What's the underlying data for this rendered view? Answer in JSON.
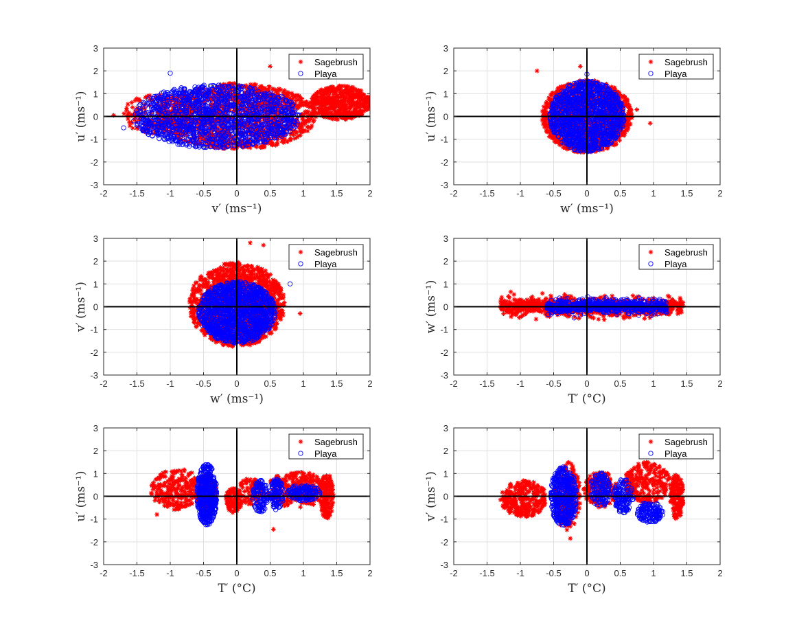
{
  "figure": {
    "background": "#ffffff",
    "sagebrush_color": "#ff0000",
    "playa_color": "#0000ff"
  },
  "chart_data": [
    {
      "type": "scatter",
      "panel": "top-left",
      "xlabel": "v′ (ms⁻¹)",
      "ylabel": "u′ (ms⁻¹)",
      "xlim": [
        -2,
        2
      ],
      "ylim": [
        -3,
        3
      ],
      "xticks": [
        "-2",
        "-1.5",
        "-1",
        "-0.5",
        "0",
        "0.5",
        "1",
        "1.5",
        "2"
      ],
      "yticks": [
        "-3",
        "-2",
        "-1",
        "0",
        "1",
        "2",
        "3"
      ],
      "grid": true,
      "legend": "top-right",
      "series": [
        {
          "name": "Sagebrush",
          "marker": "asterisk",
          "color": "#ff0000",
          "clusters": [
            {
              "cx": 0.0,
              "cy": 0.0,
              "rx": 1.2,
              "ry": 1.45,
              "n": 1300
            },
            {
              "cx": 1.55,
              "cy": 0.6,
              "rx": 0.45,
              "ry": 0.75,
              "n": 500
            },
            {
              "cx": -1.2,
              "cy": 0.1,
              "rx": 0.5,
              "ry": 0.9,
              "n": 150
            }
          ],
          "points": [
            {
              "x": -1.85,
              "y": 0.05
            },
            {
              "x": 0.5,
              "y": 2.2
            },
            {
              "x": 1.95,
              "y": 0.75
            }
          ]
        },
        {
          "name": "Playa",
          "marker": "circle",
          "color": "#0000ff",
          "clusters": [
            {
              "cx": -0.3,
              "cy": 0.0,
              "rx": 1.25,
              "ry": 1.4,
              "n": 1500
            }
          ],
          "points": [
            {
              "x": -1.7,
              "y": -0.5
            },
            {
              "x": -1.0,
              "y": 1.9
            },
            {
              "x": -1.55,
              "y": -0.2
            }
          ]
        }
      ]
    },
    {
      "type": "scatter",
      "panel": "top-right",
      "xlabel": "w′ (ms⁻¹)",
      "ylabel": "u′ (ms⁻¹)",
      "xlim": [
        -2,
        2
      ],
      "ylim": [
        -3,
        3
      ],
      "xticks": [
        "-2",
        "-1.5",
        "-1",
        "-0.5",
        "0",
        "0.5",
        "1",
        "1.5",
        "2"
      ],
      "yticks": [
        "-3",
        "-2",
        "-1",
        "0",
        "1",
        "2",
        "3"
      ],
      "grid": true,
      "legend": "top-right",
      "series": [
        {
          "name": "Sagebrush",
          "marker": "asterisk",
          "color": "#ff0000",
          "clusters": [
            {
              "cx": 0.0,
              "cy": 0.0,
              "rx": 0.68,
              "ry": 1.6,
              "n": 1200
            }
          ],
          "points": [
            {
              "x": -0.75,
              "y": 2.0
            },
            {
              "x": -0.1,
              "y": 2.2
            },
            {
              "x": 0.95,
              "y": -0.3
            },
            {
              "x": 0.75,
              "y": 0.3
            }
          ]
        },
        {
          "name": "Playa",
          "marker": "circle",
          "color": "#0000ff",
          "clusters": [
            {
              "cx": 0.0,
              "cy": 0.0,
              "rx": 0.56,
              "ry": 1.55,
              "n": 1400
            }
          ],
          "points": [
            {
              "x": 0.0,
              "y": 1.85
            }
          ]
        }
      ]
    },
    {
      "type": "scatter",
      "panel": "middle-left",
      "xlabel": "w′ (ms⁻¹)",
      "ylabel": "v′ (ms⁻¹)",
      "xlim": [
        -2,
        2
      ],
      "ylim": [
        -3,
        3
      ],
      "xticks": [
        "-2",
        "-1.5",
        "-1",
        "-0.5",
        "0",
        "0.5",
        "1",
        "1.5",
        "2"
      ],
      "yticks": [
        "-3",
        "-2",
        "-1",
        "0",
        "1",
        "2",
        "3"
      ],
      "grid": true,
      "legend": "top-right",
      "series": [
        {
          "name": "Sagebrush",
          "marker": "asterisk",
          "color": "#ff0000",
          "clusters": [
            {
              "cx": 0.0,
              "cy": 0.1,
              "rx": 0.72,
              "ry": 1.85,
              "n": 1300
            }
          ],
          "points": [
            {
              "x": 0.2,
              "y": 2.8
            },
            {
              "x": 0.4,
              "y": 2.7
            },
            {
              "x": 0.95,
              "y": -0.3
            },
            {
              "x": -0.7,
              "y": 0.3
            }
          ]
        },
        {
          "name": "Playa",
          "marker": "circle",
          "color": "#0000ff",
          "clusters": [
            {
              "cx": 0.0,
              "cy": -0.25,
              "rx": 0.58,
              "ry": 1.35,
              "n": 1400
            }
          ],
          "points": [
            {
              "x": 0.8,
              "y": 1.0
            }
          ]
        }
      ]
    },
    {
      "type": "scatter",
      "panel": "middle-right",
      "xlabel": "T′ (°C)",
      "ylabel": "w′ (ms⁻¹)",
      "xlim": [
        -2,
        2
      ],
      "ylim": [
        -3,
        3
      ],
      "xticks": [
        "-2",
        "-1.5",
        "-1",
        "-0.5",
        "0",
        "0.5",
        "1",
        "1.5",
        "2"
      ],
      "yticks": [
        "-3",
        "-2",
        "-1",
        "0",
        "1",
        "2",
        "3"
      ],
      "grid": true,
      "legend": "top-right",
      "series": [
        {
          "name": "Sagebrush",
          "marker": "asterisk",
          "color": "#ff0000",
          "band": {
            "xmin": -1.3,
            "xmax": 1.45,
            "ysd": 0.2,
            "ymax": 0.65,
            "n": 900
          }
        },
        {
          "name": "Playa",
          "marker": "circle",
          "color": "#0000ff",
          "band": {
            "xmin": -0.6,
            "xmax": 1.2,
            "ysd": 0.15,
            "ymax": 0.55,
            "n": 700
          }
        }
      ]
    },
    {
      "type": "scatter",
      "panel": "bottom-left",
      "xlabel": "T′ (°C)",
      "ylabel": "u′ (ms⁻¹)",
      "xlim": [
        -2,
        2
      ],
      "ylim": [
        -3,
        3
      ],
      "xticks": [
        "-2",
        "-1.5",
        "-1",
        "-0.5",
        "0",
        "0.5",
        "1",
        "1.5",
        "2"
      ],
      "yticks": [
        "-3",
        "-2",
        "-1",
        "0",
        "1",
        "2",
        "3"
      ],
      "grid": true,
      "legend": "top-right",
      "series": [
        {
          "name": "Sagebrush",
          "marker": "asterisk",
          "color": "#ff0000",
          "clusters": [
            {
              "cx": -0.9,
              "cy": 0.3,
              "rx": 0.4,
              "ry": 0.9,
              "n": 250
            },
            {
              "cx": -0.45,
              "cy": 0.1,
              "rx": 0.15,
              "ry": 0.9,
              "n": 150
            },
            {
              "cx": -0.05,
              "cy": -0.2,
              "rx": 0.12,
              "ry": 0.6,
              "n": 100
            },
            {
              "cx": 0.2,
              "cy": 0.2,
              "rx": 0.2,
              "ry": 0.6,
              "n": 100
            },
            {
              "cx": 0.9,
              "cy": 0.3,
              "rx": 0.45,
              "ry": 0.8,
              "n": 250
            },
            {
              "cx": 1.35,
              "cy": 0.0,
              "rx": 0.1,
              "ry": 1.0,
              "n": 160
            }
          ],
          "points": [
            {
              "x": 0.55,
              "y": -1.45
            },
            {
              "x": -1.2,
              "y": -0.8
            }
          ]
        },
        {
          "name": "Playa",
          "marker": "circle",
          "color": "#0000ff",
          "clusters": [
            {
              "cx": -0.45,
              "cy": 0.05,
              "rx": 0.15,
              "ry": 1.35,
              "n": 500
            },
            {
              "cx": 0.35,
              "cy": 0.0,
              "rx": 0.12,
              "ry": 0.7,
              "n": 120
            },
            {
              "cx": 0.6,
              "cy": 0.1,
              "rx": 0.1,
              "ry": 0.7,
              "n": 120
            },
            {
              "cx": 1.0,
              "cy": 0.15,
              "rx": 0.25,
              "ry": 0.35,
              "n": 150
            }
          ],
          "points": []
        }
      ]
    },
    {
      "type": "scatter",
      "panel": "bottom-right",
      "xlabel": "T′ (°C)",
      "ylabel": "v′ (ms⁻¹)",
      "xlim": [
        -2,
        2
      ],
      "ylim": [
        -3,
        3
      ],
      "xticks": [
        "-2",
        "-1.5",
        "-1",
        "-0.5",
        "0",
        "0.5",
        "1",
        "1.5",
        "2"
      ],
      "yticks": [
        "-3",
        "-2",
        "-1",
        "0",
        "1",
        "2",
        "3"
      ],
      "grid": true,
      "legend": "top-right",
      "series": [
        {
          "name": "Sagebrush",
          "marker": "asterisk",
          "color": "#ff0000",
          "clusters": [
            {
              "cx": -0.95,
              "cy": -0.1,
              "rx": 0.35,
              "ry": 0.8,
              "n": 300
            },
            {
              "cx": -0.3,
              "cy": 0.0,
              "rx": 0.2,
              "ry": 1.5,
              "n": 200
            },
            {
              "cx": 0.2,
              "cy": 0.3,
              "rx": 0.25,
              "ry": 0.8,
              "n": 150
            },
            {
              "cx": 0.9,
              "cy": 0.6,
              "rx": 0.35,
              "ry": 0.9,
              "n": 250
            },
            {
              "cx": 1.35,
              "cy": 0.0,
              "rx": 0.1,
              "ry": 1.0,
              "n": 150
            }
          ],
          "points": [
            {
              "x": -0.25,
              "y": -1.85
            }
          ]
        },
        {
          "name": "Playa",
          "marker": "circle",
          "color": "#0000ff",
          "clusters": [
            {
              "cx": -0.35,
              "cy": 0.0,
              "rx": 0.2,
              "ry": 1.3,
              "n": 500
            },
            {
              "cx": 0.2,
              "cy": 0.3,
              "rx": 0.15,
              "ry": 0.75,
              "n": 150
            },
            {
              "cx": 0.55,
              "cy": 0.0,
              "rx": 0.15,
              "ry": 0.75,
              "n": 150
            },
            {
              "cx": 0.95,
              "cy": -0.7,
              "rx": 0.2,
              "ry": 0.45,
              "n": 150
            }
          ],
          "points": []
        }
      ]
    }
  ]
}
